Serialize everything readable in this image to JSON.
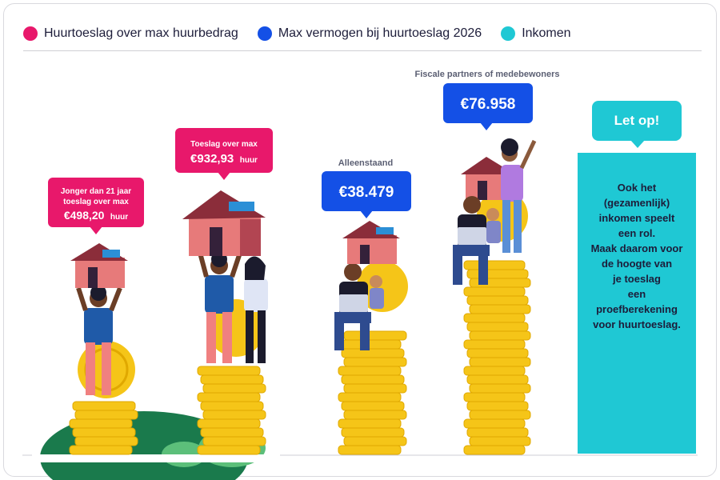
{
  "legend": [
    {
      "label": "Huurtoeslag over max huurbedrag",
      "color": "#e8186b"
    },
    {
      "label": "Max vermogen bij huurtoeslag 2026",
      "color": "#1450e6"
    },
    {
      "label": "Inkomen",
      "color": "#1fc8d4"
    }
  ],
  "callouts": {
    "young": {
      "line1": "Jonger dan 21 jaar",
      "line2": "toeslag over max",
      "amount": "€498,20",
      "unit": "huur"
    },
    "adult": {
      "line1": "Toeslag over max",
      "amount": "€932,93",
      "unit": "huur"
    },
    "single": {
      "label": "Alleenstaand",
      "amount": "€38.479"
    },
    "partners": {
      "label": "Fiscale partners of medebewoners",
      "amount": "€76.958"
    }
  },
  "note": {
    "title": "Let op!",
    "text": "Ook het\n(gezamenlijk)\ninkomen speelt\neen rol.\nMaak daarom voor\nde hoogte van\nje toeslag\neen\nproefberekening\nvoor huurtoeslag."
  },
  "chart_data": {
    "type": "bar",
    "categories": [
      "Jonger dan 21 jaar toeslag over max",
      "Toeslag over max",
      "Alleenstaand",
      "Fiscale partners of medebewoners"
    ],
    "series": [
      {
        "name": "Huurtoeslag over max huurbedrag",
        "values": [
          498.2,
          932.93,
          null,
          null
        ]
      },
      {
        "name": "Max vermogen bij huurtoeslag 2026",
        "values": [
          null,
          null,
          38479,
          76958
        ]
      }
    ],
    "colors": {
      "pink": "#e8186b",
      "blue": "#1450e6",
      "teal": "#1fc8d4",
      "coin": "#f5c518"
    }
  }
}
